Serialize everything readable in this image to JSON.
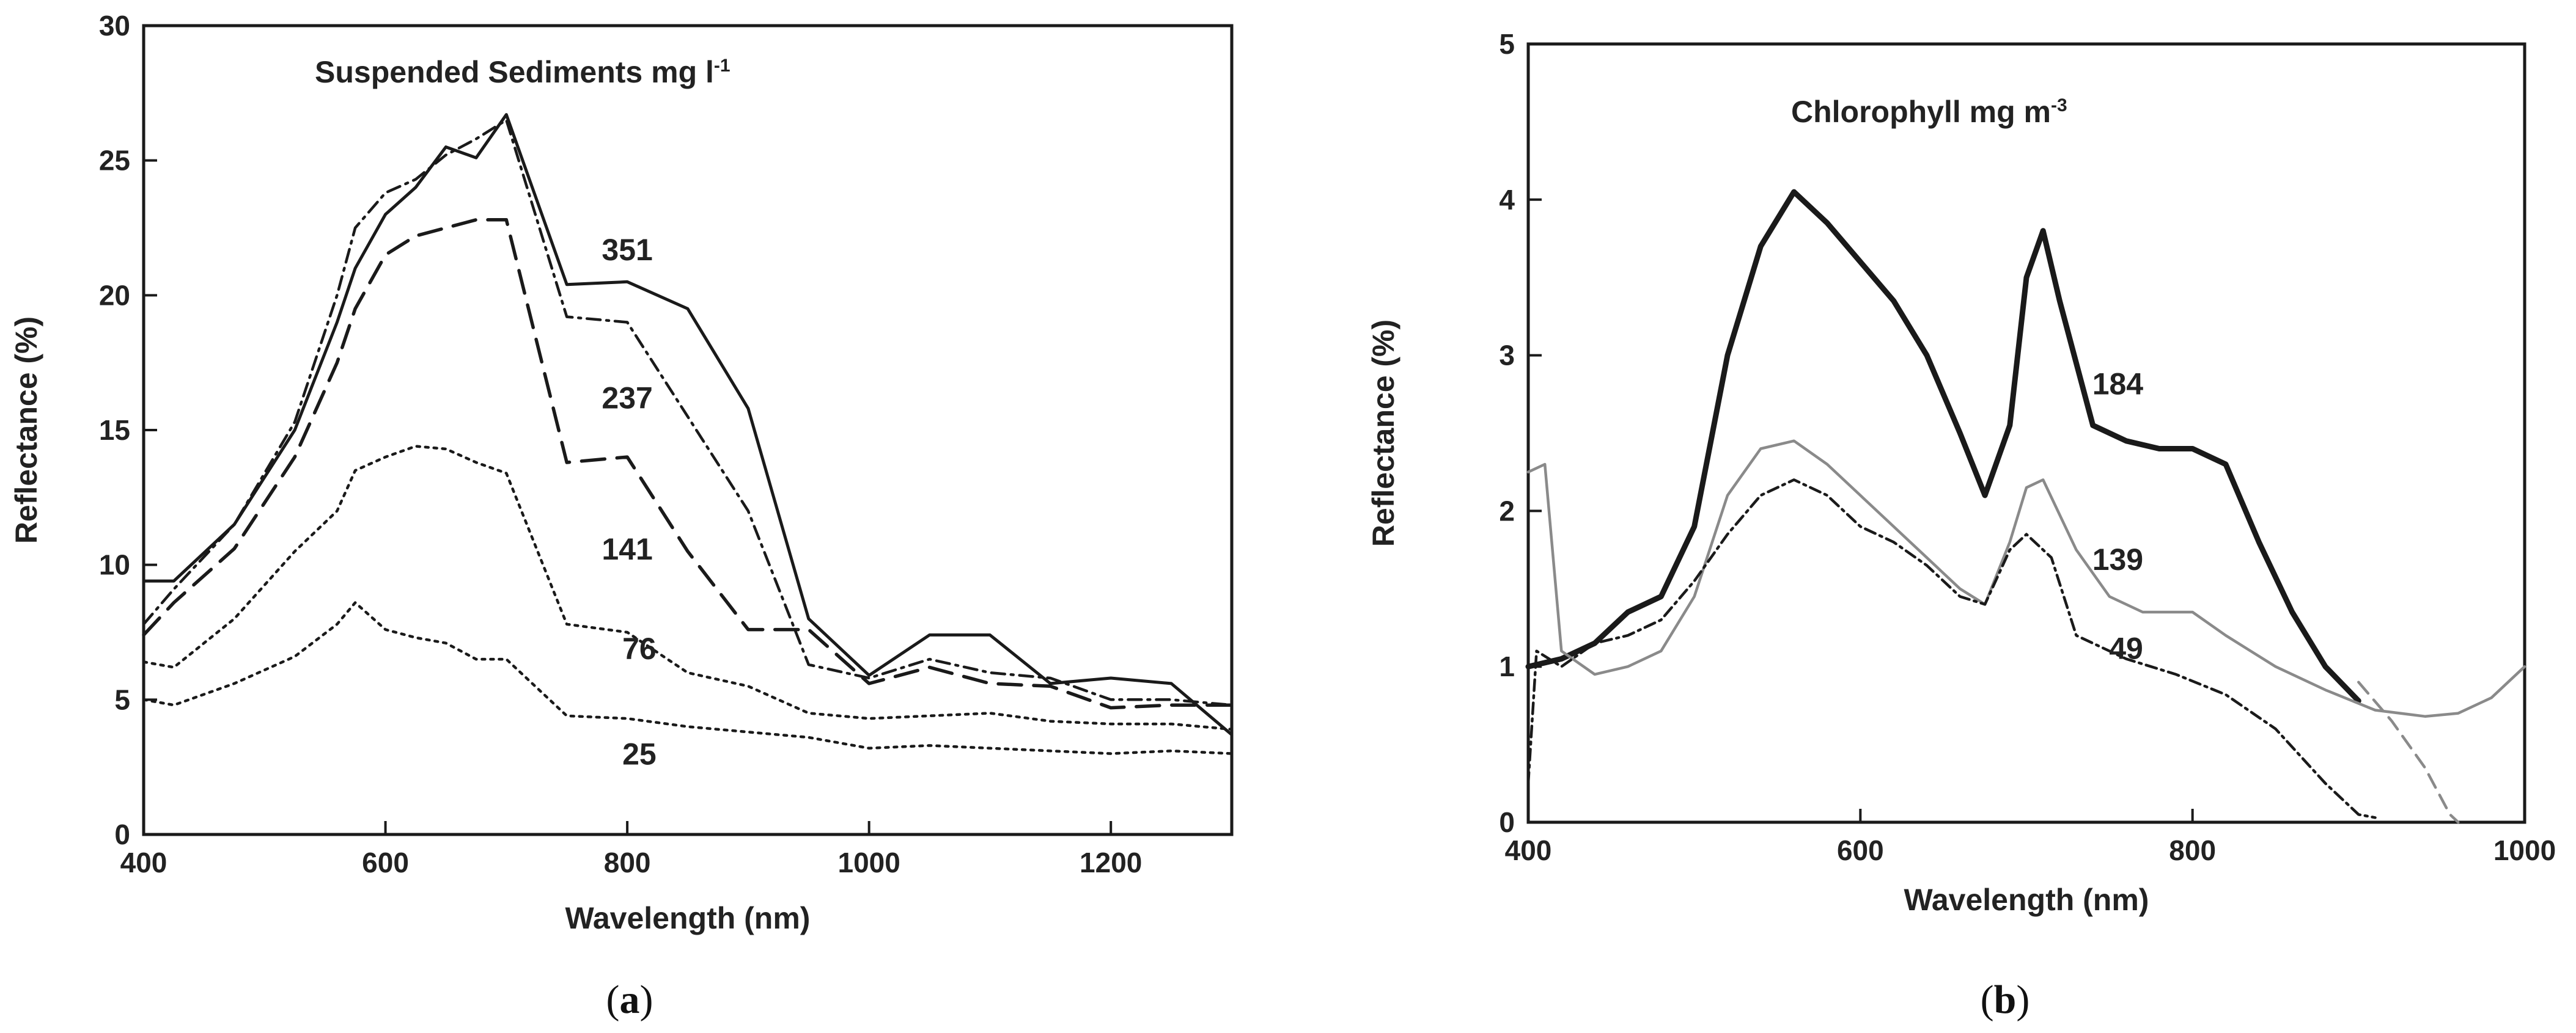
{
  "chart_data": [
    {
      "type": "line",
      "panel": "a",
      "caption_open": "(",
      "caption_letter": "a",
      "caption_close": ")",
      "title": "Suspended Sediments mg l",
      "title_superscript": "-1",
      "xlabel": "Wavelength (nm)",
      "ylabel": "Reflectance (%)",
      "xlim": [
        400,
        1300
      ],
      "ylim": [
        0,
        30
      ],
      "xticks": [
        400,
        600,
        800,
        1000,
        1200
      ],
      "yticks": [
        0,
        5,
        10,
        15,
        20,
        25,
        30
      ],
      "series": [
        {
          "name": "351",
          "label_at": [
            800,
            21.3
          ],
          "style": "solid",
          "color": "#1a1a1a",
          "points": [
            [
              400,
              9.4
            ],
            [
              425,
              9.4
            ],
            [
              475,
              11.5
            ],
            [
              525,
              15.0
            ],
            [
              560,
              19.0
            ],
            [
              575,
              21.0
            ],
            [
              600,
              23.0
            ],
            [
              625,
              24.0
            ],
            [
              650,
              25.5
            ],
            [
              675,
              25.1
            ],
            [
              700,
              26.7
            ],
            [
              750,
              20.4
            ],
            [
              800,
              20.5
            ],
            [
              850,
              19.5
            ],
            [
              900,
              15.8
            ],
            [
              950,
              8.0
            ],
            [
              1000,
              5.9
            ],
            [
              1050,
              7.4
            ],
            [
              1100,
              7.4
            ],
            [
              1150,
              5.6
            ],
            [
              1200,
              5.8
            ],
            [
              1250,
              5.6
            ],
            [
              1300,
              3.7
            ]
          ]
        },
        {
          "name": "237",
          "label_at": [
            800,
            15.8
          ],
          "style": "dotdash",
          "color": "#1a1a1a",
          "points": [
            [
              400,
              7.8
            ],
            [
              425,
              9.1
            ],
            [
              475,
              11.5
            ],
            [
              525,
              15.3
            ],
            [
              560,
              20.0
            ],
            [
              575,
              22.5
            ],
            [
              600,
              23.8
            ],
            [
              625,
              24.3
            ],
            [
              650,
              25.2
            ],
            [
              675,
              25.8
            ],
            [
              700,
              26.5
            ],
            [
              750,
              19.2
            ],
            [
              800,
              19.0
            ],
            [
              850,
              15.5
            ],
            [
              900,
              12.0
            ],
            [
              950,
              6.3
            ],
            [
              1000,
              5.8
            ],
            [
              1050,
              6.5
            ],
            [
              1100,
              6.0
            ],
            [
              1150,
              5.8
            ],
            [
              1200,
              5.0
            ],
            [
              1250,
              5.0
            ],
            [
              1300,
              4.8
            ]
          ]
        },
        {
          "name": "141",
          "label_at": [
            800,
            10.2
          ],
          "style": "longdash",
          "color": "#1a1a1a",
          "points": [
            [
              400,
              7.4
            ],
            [
              425,
              8.6
            ],
            [
              475,
              10.6
            ],
            [
              525,
              14.0
            ],
            [
              560,
              17.5
            ],
            [
              575,
              19.5
            ],
            [
              600,
              21.5
            ],
            [
              625,
              22.2
            ],
            [
              650,
              22.5
            ],
            [
              675,
              22.8
            ],
            [
              700,
              22.8
            ],
            [
              750,
              13.8
            ],
            [
              800,
              14.0
            ],
            [
              850,
              10.5
            ],
            [
              900,
              7.6
            ],
            [
              950,
              7.6
            ],
            [
              1000,
              5.6
            ],
            [
              1050,
              6.2
            ],
            [
              1100,
              5.6
            ],
            [
              1150,
              5.5
            ],
            [
              1200,
              4.7
            ],
            [
              1250,
              4.8
            ],
            [
              1300,
              4.8
            ]
          ]
        },
        {
          "name": "76",
          "label_at": [
            810,
            6.5
          ],
          "style": "dotted",
          "color": "#1a1a1a",
          "points": [
            [
              400,
              6.4
            ],
            [
              425,
              6.2
            ],
            [
              475,
              8.0
            ],
            [
              525,
              10.5
            ],
            [
              560,
              12.0
            ],
            [
              575,
              13.5
            ],
            [
              600,
              14.0
            ],
            [
              625,
              14.4
            ],
            [
              650,
              14.3
            ],
            [
              675,
              13.8
            ],
            [
              700,
              13.4
            ],
            [
              750,
              7.8
            ],
            [
              800,
              7.5
            ],
            [
              850,
              6.0
            ],
            [
              900,
              5.5
            ],
            [
              950,
              4.5
            ],
            [
              1000,
              4.3
            ],
            [
              1050,
              4.4
            ],
            [
              1100,
              4.5
            ],
            [
              1150,
              4.2
            ],
            [
              1200,
              4.1
            ],
            [
              1250,
              4.1
            ],
            [
              1300,
              3.9
            ]
          ]
        },
        {
          "name": "25",
          "label_at": [
            810,
            2.6
          ],
          "style": "dotted",
          "color": "#1a1a1a",
          "points": [
            [
              400,
              5.0
            ],
            [
              425,
              4.8
            ],
            [
              475,
              5.6
            ],
            [
              525,
              6.6
            ],
            [
              560,
              7.8
            ],
            [
              575,
              8.6
            ],
            [
              600,
              7.6
            ],
            [
              625,
              7.3
            ],
            [
              650,
              7.1
            ],
            [
              675,
              6.5
            ],
            [
              700,
              6.5
            ],
            [
              750,
              4.4
            ],
            [
              800,
              4.3
            ],
            [
              850,
              4.0
            ],
            [
              900,
              3.8
            ],
            [
              950,
              3.6
            ],
            [
              1000,
              3.2
            ],
            [
              1050,
              3.3
            ],
            [
              1100,
              3.2
            ],
            [
              1150,
              3.1
            ],
            [
              1200,
              3.0
            ],
            [
              1250,
              3.1
            ],
            [
              1300,
              3.0
            ]
          ]
        }
      ]
    },
    {
      "type": "line",
      "panel": "b",
      "caption_open": "(",
      "caption_letter": "b",
      "caption_close": ")",
      "title": "Chlorophyll mg m",
      "title_superscript": "-3",
      "xlabel": "Wavelength (nm)",
      "ylabel": "Reflectance (%)",
      "xlim": [
        400,
        1000
      ],
      "ylim": [
        0,
        5
      ],
      "xticks": [
        400,
        600,
        800,
        1000
      ],
      "yticks": [
        0,
        1,
        2,
        3,
        4,
        5
      ],
      "series": [
        {
          "name": "184",
          "label_at": [
            755,
            2.75
          ],
          "style": "thick",
          "color": "#1a1a1a",
          "points": [
            [
              400,
              1.0
            ],
            [
              420,
              1.05
            ],
            [
              440,
              1.15
            ],
            [
              460,
              1.35
            ],
            [
              480,
              1.45
            ],
            [
              500,
              1.9
            ],
            [
              520,
              3.0
            ],
            [
              540,
              3.7
            ],
            [
              560,
              4.05
            ],
            [
              580,
              3.85
            ],
            [
              600,
              3.6
            ],
            [
              620,
              3.35
            ],
            [
              640,
              3.0
            ],
            [
              660,
              2.5
            ],
            [
              675,
              2.1
            ],
            [
              690,
              2.55
            ],
            [
              700,
              3.5
            ],
            [
              710,
              3.8
            ],
            [
              720,
              3.35
            ],
            [
              740,
              2.55
            ],
            [
              760,
              2.45
            ],
            [
              780,
              2.4
            ],
            [
              800,
              2.4
            ],
            [
              820,
              2.3
            ],
            [
              840,
              1.8
            ],
            [
              860,
              1.35
            ],
            [
              880,
              1.0
            ],
            [
              900,
              0.78
            ]
          ]
        },
        {
          "name": "139",
          "label_at": [
            755,
            1.62
          ],
          "style": "gray",
          "color": "#8a8a8a",
          "points": [
            [
              400,
              2.25
            ],
            [
              410,
              2.3
            ],
            [
              420,
              1.1
            ],
            [
              440,
              0.95
            ],
            [
              460,
              1.0
            ],
            [
              480,
              1.1
            ],
            [
              500,
              1.45
            ],
            [
              520,
              2.1
            ],
            [
              540,
              2.4
            ],
            [
              560,
              2.45
            ],
            [
              580,
              2.3
            ],
            [
              600,
              2.1
            ],
            [
              620,
              1.9
            ],
            [
              640,
              1.7
            ],
            [
              660,
              1.5
            ],
            [
              675,
              1.4
            ],
            [
              690,
              1.8
            ],
            [
              700,
              2.15
            ],
            [
              710,
              2.2
            ],
            [
              730,
              1.75
            ],
            [
              750,
              1.45
            ],
            [
              770,
              1.35
            ],
            [
              800,
              1.35
            ],
            [
              820,
              1.2
            ],
            [
              850,
              1.0
            ],
            [
              880,
              0.85
            ],
            [
              910,
              0.72
            ],
            [
              940,
              0.68
            ],
            [
              960,
              0.7
            ],
            [
              980,
              0.8
            ],
            [
              1000,
              1.0
            ]
          ]
        },
        {
          "name": "49",
          "label_at": [
            760,
            1.05
          ],
          "style": "dashdot",
          "color": "#1a1a1a",
          "points": [
            [
              400,
              0.25
            ],
            [
              405,
              1.1
            ],
            [
              420,
              1.0
            ],
            [
              440,
              1.15
            ],
            [
              460,
              1.2
            ],
            [
              480,
              1.3
            ],
            [
              500,
              1.55
            ],
            [
              520,
              1.85
            ],
            [
              540,
              2.1
            ],
            [
              560,
              2.2
            ],
            [
              580,
              2.1
            ],
            [
              600,
              1.9
            ],
            [
              620,
              1.8
            ],
            [
              640,
              1.65
            ],
            [
              660,
              1.45
            ],
            [
              675,
              1.4
            ],
            [
              690,
              1.75
            ],
            [
              700,
              1.85
            ],
            [
              715,
              1.7
            ],
            [
              730,
              1.2
            ],
            [
              760,
              1.05
            ],
            [
              790,
              0.95
            ],
            [
              820,
              0.82
            ],
            [
              850,
              0.6
            ],
            [
              880,
              0.25
            ],
            [
              900,
              0.05
            ],
            [
              910,
              0.03
            ]
          ]
        },
        {
          "name": "",
          "label_at": null,
          "style": "graydash",
          "color": "#8a8a8a",
          "points": [
            [
              900,
              0.9
            ],
            [
              920,
              0.65
            ],
            [
              940,
              0.35
            ],
            [
              955,
              0.05
            ],
            [
              960,
              0.0
            ]
          ]
        }
      ]
    }
  ]
}
